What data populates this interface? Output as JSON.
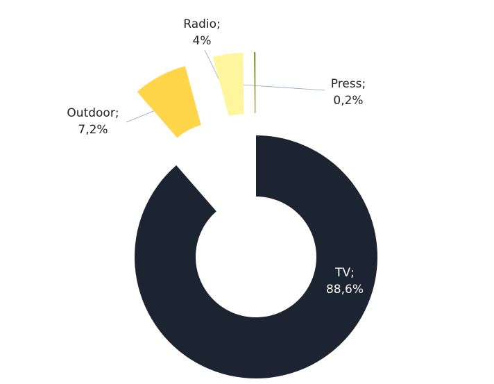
{
  "chart_data": {
    "type": "donut",
    "categories": [
      "TV;",
      "Outdoor;",
      "Radio;",
      "Press;"
    ],
    "values": [
      88.6,
      7.2,
      4,
      0.2
    ],
    "value_labels": [
      "88,6%",
      "7,2%",
      "4%",
      "0,2%"
    ],
    "colors": [
      "#1c2331",
      "#ffd54a",
      "#fff59d",
      "#8a8a2a"
    ]
  }
}
